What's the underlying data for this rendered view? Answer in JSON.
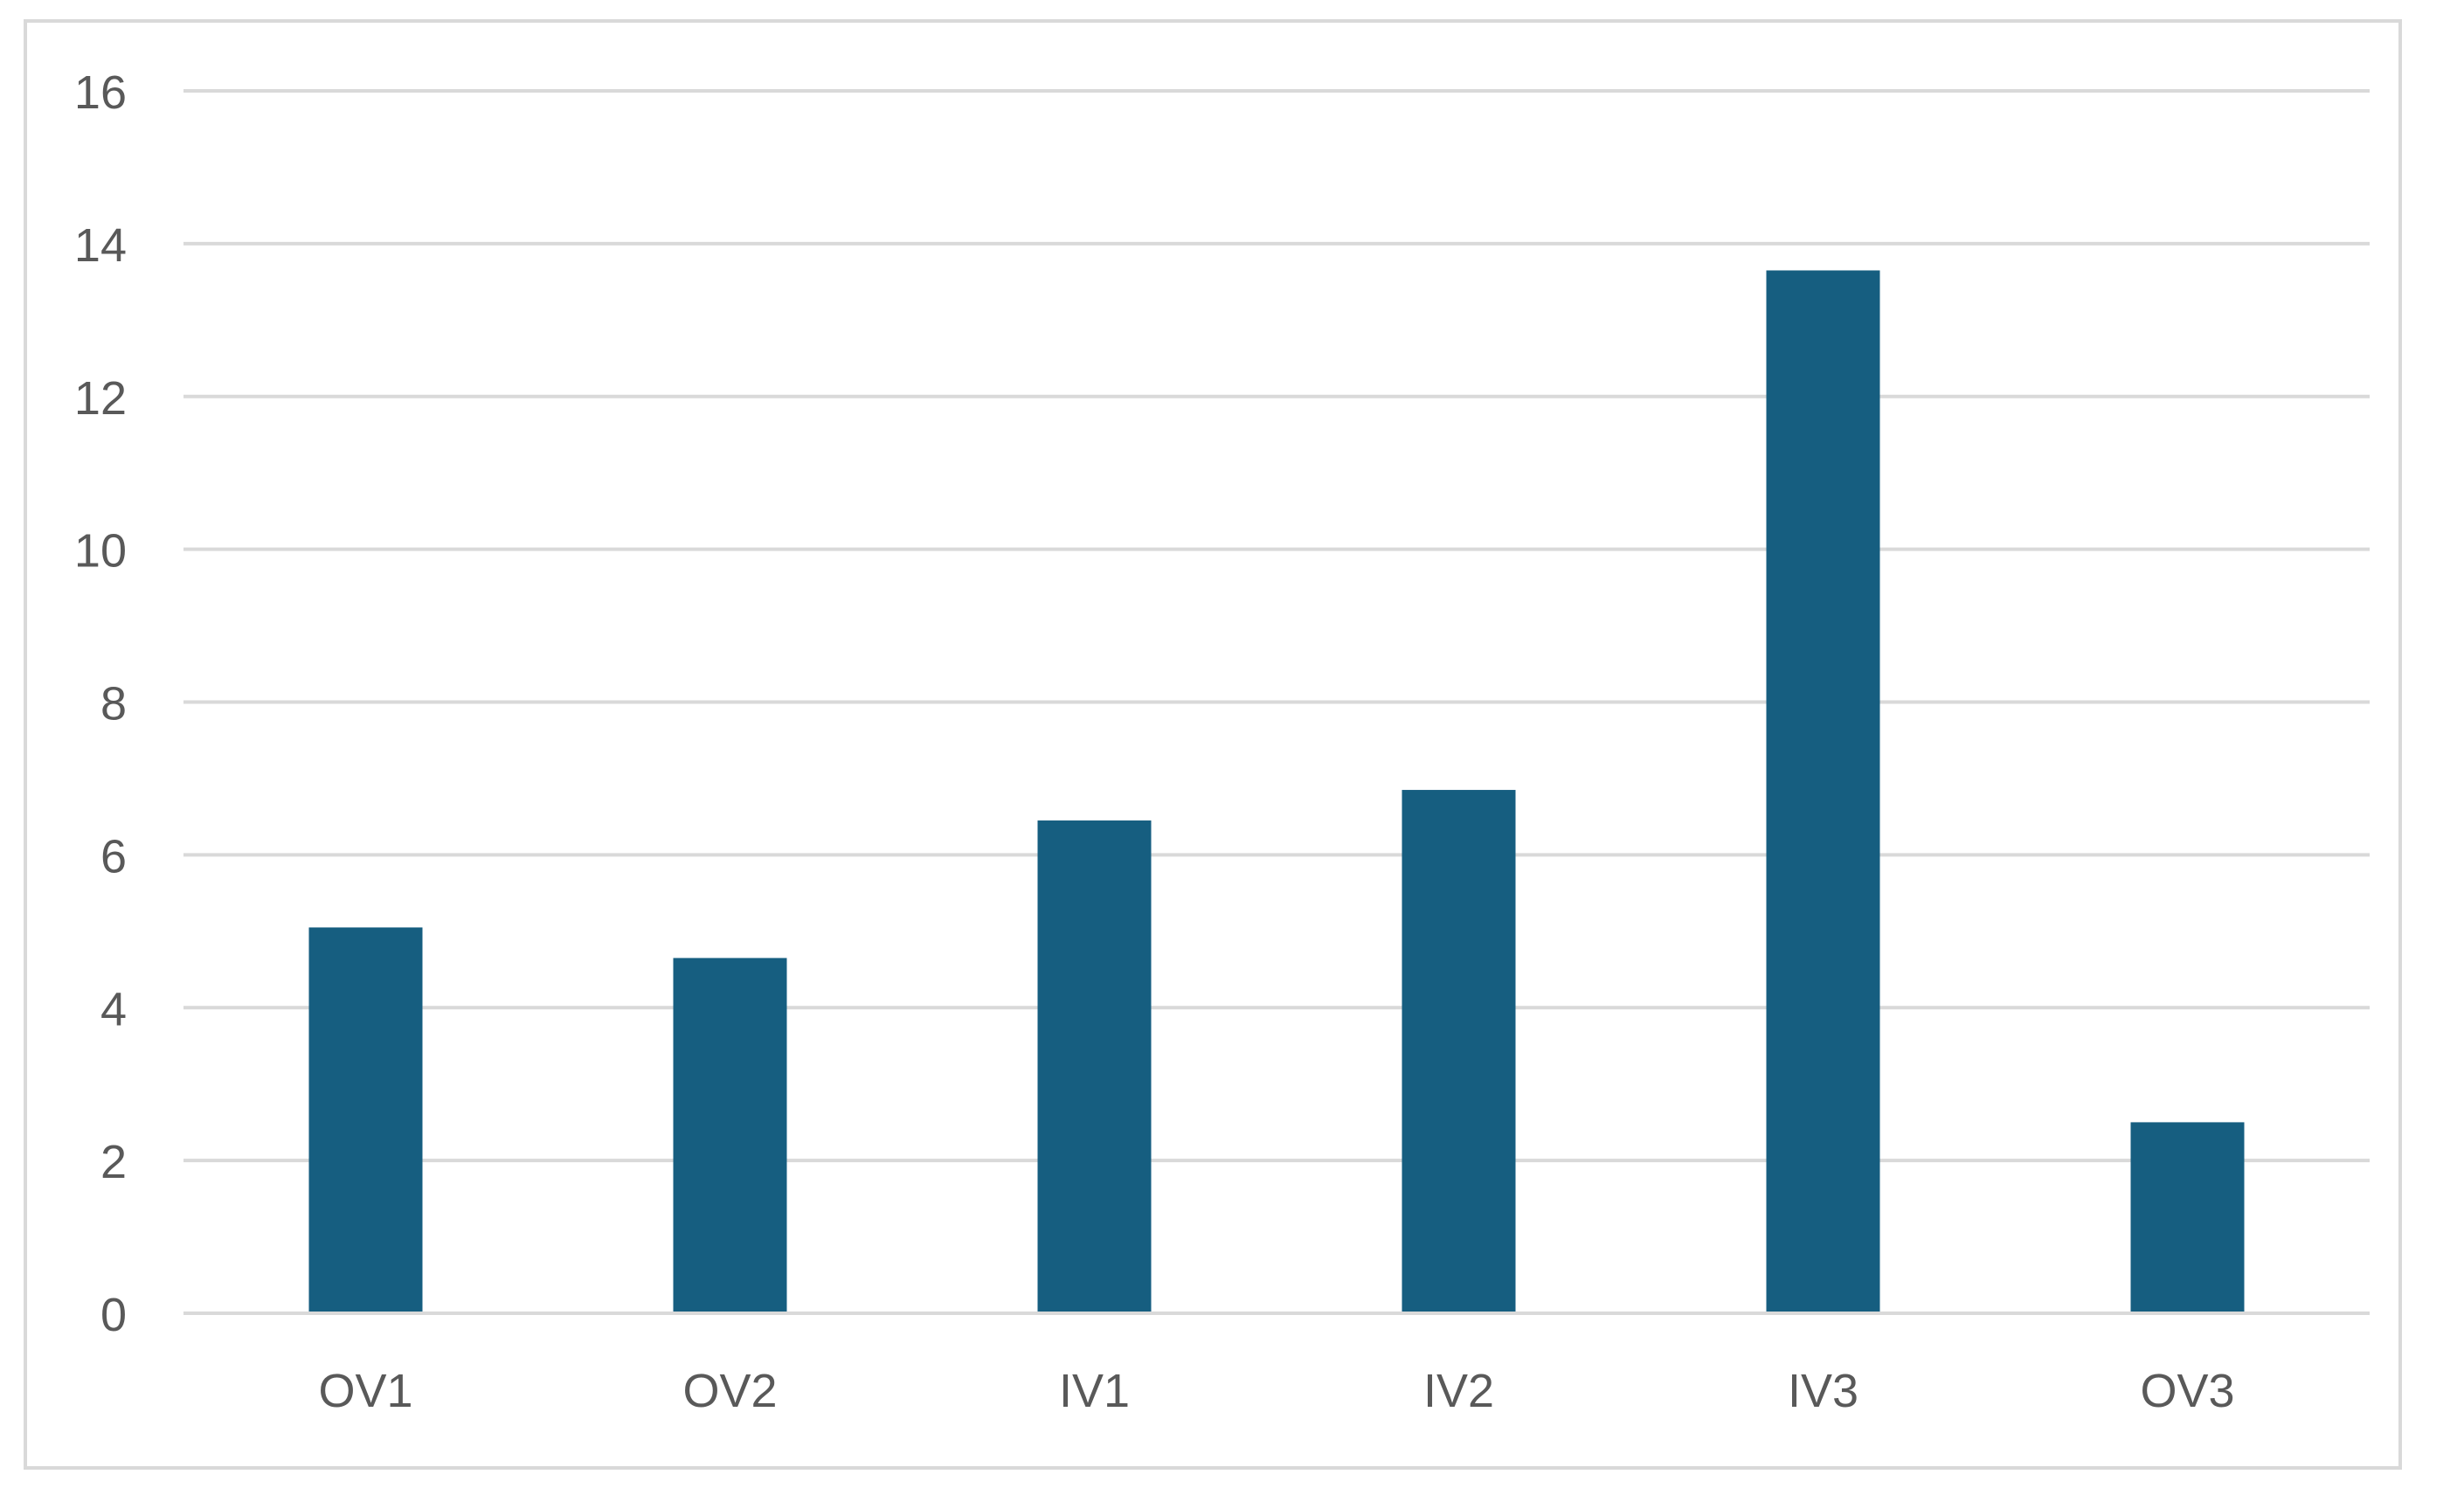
{
  "chart_data": {
    "type": "bar",
    "title": "",
    "xlabel": "",
    "ylabel": "",
    "categories": [
      "OV1",
      "OV2",
      "IV1",
      "IV2",
      "IV3",
      "OV3"
    ],
    "values": [
      5.05,
      4.65,
      6.45,
      6.85,
      13.65,
      2.5
    ],
    "ylim": [
      0,
      16
    ],
    "yticks": [
      0,
      2,
      4,
      6,
      8,
      10,
      12,
      14,
      16
    ],
    "ytick_labels": [
      "0",
      "2",
      "4",
      "6",
      "8",
      "10",
      "12",
      "14",
      "16"
    ],
    "grid": true,
    "legend": "none",
    "colors": {
      "bar": "#165e80",
      "grid": "#d9d9d9",
      "text": "#595959",
      "frame": "#d9d9d9"
    }
  }
}
